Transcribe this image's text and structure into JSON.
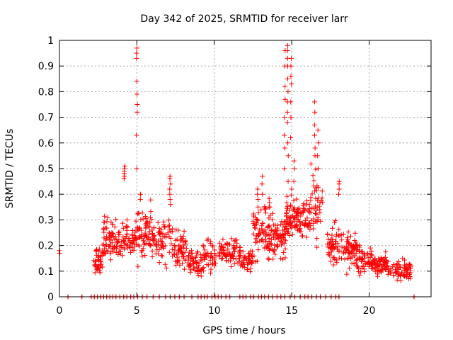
{
  "chart_data": {
    "type": "scatter",
    "title": "Day 342 of 2025, SRMTID for receiver larr",
    "xlabel": "GPS time / hours",
    "ylabel": "SRMTID / TECUs",
    "xlim": [
      0,
      24
    ],
    "ylim": [
      0,
      1
    ],
    "xticks": [
      "0",
      "5",
      "10",
      "15",
      "20"
    ],
    "yticks": [
      "0",
      "0.1",
      "0.2",
      "0.3",
      "0.4",
      "0.5",
      "0.6",
      "0.7",
      "0.8",
      "0.9",
      "1"
    ],
    "grid": true,
    "marker": "plus",
    "color": "#ff0000",
    "clusters": [
      {
        "x0": 2.2,
        "x1": 2.8,
        "ymin": 0.07,
        "ymax": 0.22,
        "n": 40
      },
      {
        "x0": 2.8,
        "x1": 3.4,
        "ymin": 0.08,
        "ymax": 0.34,
        "n": 45
      },
      {
        "x0": 3.4,
        "x1": 4.5,
        "ymin": 0.12,
        "ymax": 0.32,
        "n": 60
      },
      {
        "x0": 4.5,
        "x1": 5.0,
        "ymin": 0.15,
        "ymax": 0.3,
        "n": 30
      },
      {
        "x0": 5.0,
        "x1": 6.0,
        "ymin": 0.1,
        "ymax": 0.4,
        "n": 70
      },
      {
        "x0": 6.0,
        "x1": 7.3,
        "ymin": 0.1,
        "ymax": 0.35,
        "n": 70
      },
      {
        "x0": 7.3,
        "x1": 8.2,
        "ymin": 0.08,
        "ymax": 0.3,
        "n": 55
      },
      {
        "x0": 8.2,
        "x1": 9.2,
        "ymin": 0.06,
        "ymax": 0.2,
        "n": 55
      },
      {
        "x0": 9.2,
        "x1": 10.2,
        "ymin": 0.07,
        "ymax": 0.25,
        "n": 45
      },
      {
        "x0": 10.3,
        "x1": 11.5,
        "ymin": 0.1,
        "ymax": 0.26,
        "n": 65
      },
      {
        "x0": 11.5,
        "x1": 12.5,
        "ymin": 0.08,
        "ymax": 0.22,
        "n": 55
      },
      {
        "x0": 12.5,
        "x1": 13.6,
        "ymin": 0.1,
        "ymax": 0.42,
        "n": 80
      },
      {
        "x0": 13.6,
        "x1": 14.6,
        "ymin": 0.12,
        "ymax": 0.35,
        "n": 75
      },
      {
        "x0": 14.6,
        "x1": 15.2,
        "ymin": 0.2,
        "ymax": 0.45,
        "n": 50
      },
      {
        "x0": 15.2,
        "x1": 16.2,
        "ymin": 0.2,
        "ymax": 0.42,
        "n": 65
      },
      {
        "x0": 16.2,
        "x1": 17.0,
        "ymin": 0.15,
        "ymax": 0.55,
        "n": 45
      },
      {
        "x0": 17.3,
        "x1": 18.2,
        "ymin": 0.08,
        "ymax": 0.32,
        "n": 55
      },
      {
        "x0": 18.2,
        "x1": 19.2,
        "ymin": 0.08,
        "ymax": 0.28,
        "n": 65
      },
      {
        "x0": 19.2,
        "x1": 20.2,
        "ymin": 0.06,
        "ymax": 0.22,
        "n": 60
      },
      {
        "x0": 20.2,
        "x1": 21.2,
        "ymin": 0.07,
        "ymax": 0.18,
        "n": 60
      },
      {
        "x0": 21.2,
        "x1": 22.7,
        "ymin": 0.05,
        "ymax": 0.16,
        "n": 75
      }
    ],
    "spikes": [
      {
        "x": 4.2,
        "values": [
          0.46,
          0.47,
          0.48,
          0.49,
          0.5,
          0.51
        ]
      },
      {
        "x": 5.0,
        "values": [
          0.5,
          0.63,
          0.72,
          0.75,
          0.79,
          0.84,
          0.93,
          0.95,
          0.97
        ]
      },
      {
        "x": 5.25,
        "values": [
          0.38,
          0.4
        ]
      },
      {
        "x": 7.15,
        "values": [
          0.36,
          0.38,
          0.4,
          0.42,
          0.44,
          0.46,
          0.47
        ]
      },
      {
        "x": 12.8,
        "values": [
          0.3,
          0.35,
          0.38,
          0.4,
          0.42
        ]
      },
      {
        "x": 13.1,
        "values": [
          0.4,
          0.44,
          0.47
        ]
      },
      {
        "x": 14.55,
        "values": [
          0.5,
          0.58,
          0.63,
          0.7,
          0.77,
          0.82,
          0.9,
          0.96
        ]
      },
      {
        "x": 14.75,
        "values": [
          0.45,
          0.55,
          0.6,
          0.68,
          0.72,
          0.76,
          0.8,
          0.85,
          0.9,
          0.93,
          0.96,
          0.98
        ]
      },
      {
        "x": 14.95,
        "values": [
          0.62,
          0.7,
          0.76,
          0.83,
          0.86,
          0.9,
          0.93
        ]
      },
      {
        "x": 15.15,
        "values": [
          0.45,
          0.5,
          0.53
        ]
      },
      {
        "x": 16.5,
        "values": [
          0.55,
          0.58,
          0.63,
          0.67,
          0.72,
          0.76
        ]
      },
      {
        "x": 16.7,
        "values": [
          0.5,
          0.55,
          0.6,
          0.65
        ]
      },
      {
        "x": 18.05,
        "values": [
          0.4,
          0.42,
          0.44,
          0.45
        ]
      },
      {
        "x": 0.0,
        "values": [
          0.17,
          0.18
        ]
      }
    ],
    "zero_markers": [
      0.55,
      1.45,
      2.05,
      2.25,
      2.45,
      2.65,
      2.85,
      3.05,
      3.25,
      3.45,
      3.65,
      3.9,
      4.15,
      4.35,
      4.6,
      4.8,
      5.05,
      5.35,
      5.65,
      6.05,
      6.45,
      6.85,
      7.15,
      7.45,
      7.75,
      8.05,
      8.55,
      8.95,
      9.15,
      9.35,
      9.55,
      9.85,
      10.05,
      10.25,
      10.45,
      10.75,
      11.0,
      11.65,
      11.85,
      12.05,
      12.35,
      12.55,
      12.85,
      13.05,
      13.25,
      13.5,
      13.75,
      14.05,
      14.3,
      14.55,
      14.9,
      15.2,
      15.55,
      15.85,
      16.05,
      16.3,
      16.6,
      16.85,
      17.2,
      17.55,
      17.85,
      18.05,
      22.9
    ]
  }
}
